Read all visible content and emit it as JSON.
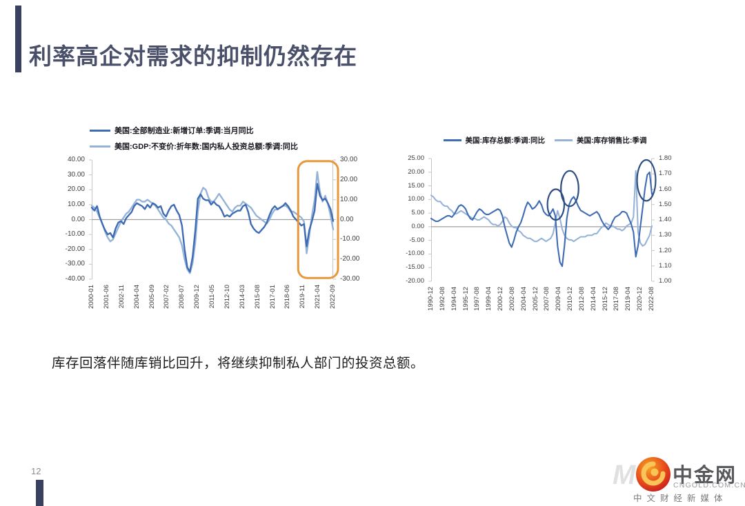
{
  "header": {
    "title": "利率高企对需求的抑制仍然存在"
  },
  "caption": "库存回落伴随库销比回升，将继续抑制私人部门的投资总额。",
  "footer": {
    "page_number": "12"
  },
  "logo": {
    "watermark": "M",
    "title": "中金网",
    "domain": "CNGOLD.COM.CN",
    "tagline": "中文财经新媒体"
  },
  "colors": {
    "accent_bar": "#3a4160",
    "series_dark": "#3e6bb4",
    "series_light": "#95b3d7",
    "highlight_orange": "#e8973c",
    "annotation_navy": "#2e4d80"
  },
  "chart_data": [
    {
      "type": "line",
      "legend_position": "top-left",
      "x_ticks": [
        "2000-01",
        "2001-06",
        "2002-11",
        "2004-04",
        "2005-09",
        "2007-02",
        "2008-07",
        "2009-12",
        "2011-05",
        "2012-10",
        "2014-03",
        "2015-08",
        "2017-01",
        "2018-06",
        "2019-11",
        "2021-04",
        "2022-09"
      ],
      "left_axis": {
        "min": -40,
        "max": 40,
        "ticks": [
          "40.00",
          "30.00",
          "20.00",
          "10.00",
          "0.00",
          "-10.00",
          "-20.00",
          "-30.00",
          "-40.00"
        ]
      },
      "right_axis": {
        "min": -30,
        "max": 30,
        "ticks": [
          "30.00",
          "20.00",
          "10.00",
          "0.00",
          "-10.00",
          "-20.00",
          "-30.00"
        ]
      },
      "series": [
        {
          "name": "美国:全部制造业:新增订单:季调:当月同比",
          "axis": "left",
          "color": "#3e6bb4",
          "width": 2.4,
          "values": [
            8,
            6,
            9,
            2,
            -3,
            -7,
            -10,
            -9,
            -12,
            -6,
            -2,
            -1,
            -3,
            1,
            3,
            5,
            9,
            11,
            10,
            9,
            7,
            10,
            8,
            11,
            10,
            8,
            9,
            4,
            2,
            6,
            9,
            10,
            6,
            3,
            -4,
            -20,
            -32,
            -35,
            -25,
            -8,
            14,
            17,
            14,
            13,
            13,
            10,
            12,
            10,
            9,
            6,
            2,
            3,
            2,
            4,
            5,
            6,
            6,
            9,
            10,
            5,
            -3,
            -6,
            -8,
            -9,
            -7,
            -5,
            -2,
            3,
            7,
            9,
            7,
            8,
            9,
            11,
            9,
            6,
            2,
            0,
            -2,
            -4,
            -3,
            -18,
            -7,
            -1,
            6,
            24,
            16,
            13,
            14,
            11,
            7,
            -1
          ]
        },
        {
          "name": "美国:GDP:不变价:折年数:国内私人投资总额:季调:同比",
          "axis": "right",
          "color": "#95b3d7",
          "width": 2.4,
          "values": [
            7,
            6,
            4,
            1,
            -2,
            -6,
            -9,
            -11,
            -10,
            -7,
            -4,
            -1,
            1,
            3,
            4,
            6,
            8,
            10,
            10,
            9,
            9,
            10,
            9,
            8,
            7,
            5,
            3,
            1,
            0,
            -2,
            -3,
            -5,
            -7,
            -9,
            -13,
            -20,
            -25,
            -27,
            -22,
            -12,
            4,
            13,
            16,
            15,
            11,
            9,
            9,
            11,
            13,
            11,
            9,
            7,
            5,
            4,
            6,
            7,
            7,
            9,
            8,
            7,
            6,
            4,
            2,
            1,
            0,
            -1,
            -2,
            0,
            3,
            5,
            5,
            6,
            7,
            7,
            6,
            4,
            4,
            3,
            2,
            1,
            -1,
            -17,
            -8,
            2,
            10,
            24,
            14,
            9,
            12,
            8,
            2,
            -5
          ]
        }
      ],
      "annotations": [
        {
          "type": "rect",
          "x0": 0.855,
          "x1": 1.02,
          "y0": 0.01,
          "y1": 0.99,
          "color": "#e8973c",
          "stroke_width": 3,
          "radius": 13
        }
      ]
    },
    {
      "type": "line",
      "legend_position": "top-center",
      "x_ticks": [
        "1990-12",
        "1992-08",
        "1994-04",
        "1995-12",
        "1997-08",
        "1999-04",
        "2000-12",
        "2002-08",
        "2004-04",
        "2005-12",
        "2007-08",
        "2009-04",
        "2010-12",
        "2012-08",
        "2014-04",
        "2015-12",
        "2017-08",
        "2019-04",
        "2020-12",
        "2022-08"
      ],
      "left_axis": {
        "min": -20,
        "max": 25,
        "ticks": [
          "25.00",
          "20.00",
          "15.00",
          "10.00",
          "5.00",
          "0.00",
          "-5.00",
          "-10.00",
          "-15.00",
          "-20.00"
        ]
      },
      "right_axis": {
        "min": 1.0,
        "max": 1.8,
        "ticks": [
          "1.80",
          "1.70",
          "1.60",
          "1.50",
          "1.40",
          "1.30",
          "1.20",
          "1.10",
          "1.00"
        ]
      },
      "series": [
        {
          "name": "美国:库存总额:季调:同比",
          "axis": "left",
          "color": "#3e6bb4",
          "width": 2.1,
          "values": [
            3,
            2.5,
            2,
            2,
            2.5,
            3,
            3.5,
            4,
            4,
            3.5,
            4.5,
            6,
            7.5,
            8,
            7.5,
            6.5,
            4.5,
            3,
            2.5,
            4,
            5.5,
            6.5,
            6,
            5,
            4.5,
            4.5,
            5,
            5.5,
            6,
            6.5,
            6,
            4,
            0,
            -3,
            -6,
            -7.5,
            -5,
            -2,
            0,
            1.5,
            4,
            7,
            9,
            8,
            6.5,
            7,
            8,
            9.5,
            8,
            5.5,
            4.5,
            4,
            5,
            6.5,
            4,
            -7,
            -13,
            -14.5,
            -7,
            3,
            8,
            10,
            11,
            9.5,
            7.5,
            6,
            5.5,
            5,
            4.5,
            4,
            4.5,
            5,
            5.5,
            4.5,
            2.5,
            1,
            0,
            -1,
            0,
            2,
            3.5,
            4,
            4.5,
            5.5,
            5.5,
            5,
            3,
            1,
            -2,
            -11,
            -7,
            0,
            7,
            14,
            19,
            20,
            12
          ]
        },
        {
          "name": "美国:库存销售比:季调",
          "axis": "right",
          "color": "#95b3d7",
          "width": 2.1,
          "values": [
            1.56,
            1.55,
            1.53,
            1.52,
            1.52,
            1.5,
            1.49,
            1.49,
            1.47,
            1.46,
            1.44,
            1.44,
            1.45,
            1.46,
            1.45,
            1.44,
            1.43,
            1.42,
            1.41,
            1.41,
            1.4,
            1.4,
            1.41,
            1.42,
            1.41,
            1.4,
            1.38,
            1.37,
            1.37,
            1.36,
            1.37,
            1.39,
            1.42,
            1.41,
            1.38,
            1.36,
            1.35,
            1.35,
            1.33,
            1.32,
            1.3,
            1.29,
            1.28,
            1.28,
            1.27,
            1.26,
            1.26,
            1.27,
            1.28,
            1.27,
            1.26,
            1.27,
            1.28,
            1.31,
            1.38,
            1.46,
            1.41,
            1.34,
            1.3,
            1.28,
            1.27,
            1.27,
            1.26,
            1.27,
            1.28,
            1.29,
            1.29,
            1.29,
            1.3,
            1.3,
            1.3,
            1.31,
            1.31,
            1.33,
            1.35,
            1.36,
            1.38,
            1.37,
            1.36,
            1.36,
            1.35,
            1.34,
            1.34,
            1.33,
            1.34,
            1.36,
            1.37,
            1.38,
            1.42,
            1.72,
            1.32,
            1.25,
            1.23,
            1.24,
            1.27,
            1.3,
            1.36
          ]
        }
      ],
      "annotations": [
        {
          "type": "ellipse",
          "axis": "right",
          "cx": 0.565,
          "cy": 1.5,
          "rx": 0.038,
          "ry": 0.1,
          "color": "#2e4d80",
          "stroke_width": 2.2
        },
        {
          "type": "ellipse",
          "axis": "left",
          "cx": 0.628,
          "cy": 14,
          "rx": 0.04,
          "ry": 6.5,
          "color": "#2e4d80",
          "stroke_width": 2.2
        },
        {
          "type": "ellipse",
          "axis": "left",
          "cx": 0.975,
          "cy": 17,
          "rx": 0.042,
          "ry": 7.5,
          "color": "#2e4d80",
          "stroke_width": 2.2
        }
      ]
    }
  ]
}
